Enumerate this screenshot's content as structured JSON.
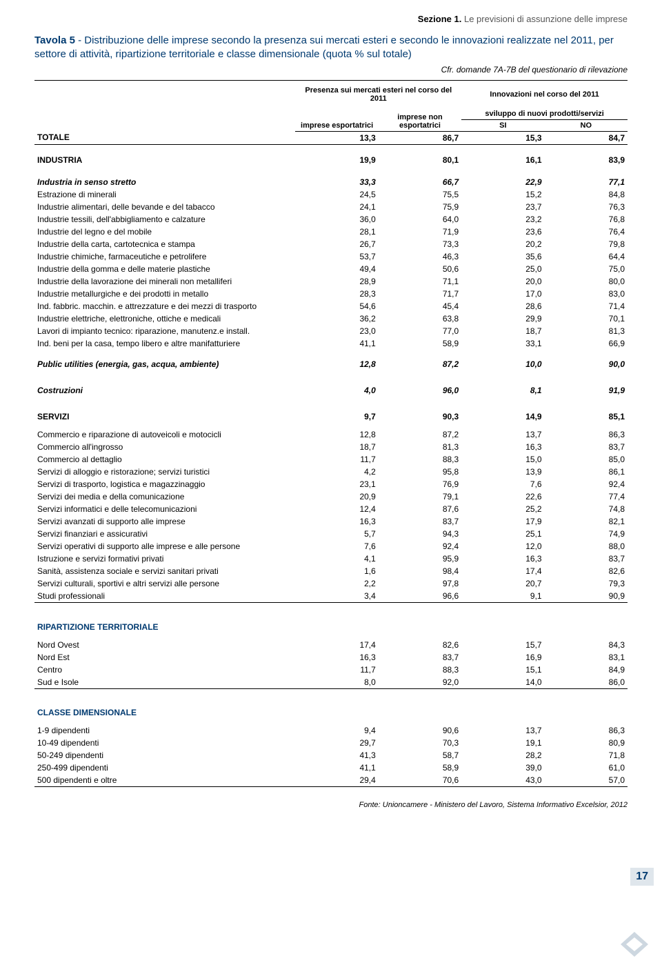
{
  "section_header": {
    "bold": "Sezione 1.",
    "rest": " Le previsioni di assunzione delle imprese"
  },
  "table_title_prefix": "Tavola 5",
  "table_title_rest": " - Distribuzione delle imprese secondo la presenza sui mercati esteri e secondo le innovazioni realizzate nel 2011, per settore di attività, ripartizione territoriale e classe dimensionale (quota % sul totale)",
  "cfr": "Cfr. domande 7A-7B del questionario di rilevazione",
  "headers": {
    "group1": "Presenza sui mercati esteri nel corso del 2011",
    "group2": "Innovazioni nel corso del 2011",
    "col1": "imprese esportatrici",
    "col2": "imprese non esportatrici",
    "sub_group": "sviluppo di nuovi prodotti/servizi",
    "col3": "SI",
    "col4": "NO"
  },
  "rows": [
    {
      "t": "bold",
      "label": "TOTALE",
      "v": [
        "13,3",
        "86,7",
        "15,3",
        "84,7"
      ],
      "bb": true
    },
    {
      "t": "spacer"
    },
    {
      "t": "bold",
      "label": "INDUSTRIA",
      "v": [
        "19,9",
        "80,1",
        "16,1",
        "83,9"
      ]
    },
    {
      "t": "spacer"
    },
    {
      "t": "italic",
      "label": "Industria in senso stretto",
      "v": [
        "33,3",
        "66,7",
        "22,9",
        "77,1"
      ]
    },
    {
      "t": "row",
      "label": "Estrazione di minerali",
      "v": [
        "24,5",
        "75,5",
        "15,2",
        "84,8"
      ]
    },
    {
      "t": "row",
      "label": "Industrie alimentari, delle bevande e del tabacco",
      "v": [
        "24,1",
        "75,9",
        "23,7",
        "76,3"
      ]
    },
    {
      "t": "row",
      "label": "Industrie tessili, dell'abbigliamento e calzature",
      "v": [
        "36,0",
        "64,0",
        "23,2",
        "76,8"
      ]
    },
    {
      "t": "row",
      "label": "Industrie del legno e del mobile",
      "v": [
        "28,1",
        "71,9",
        "23,6",
        "76,4"
      ]
    },
    {
      "t": "row",
      "label": "Industrie della carta, cartotecnica e stampa",
      "v": [
        "26,7",
        "73,3",
        "20,2",
        "79,8"
      ]
    },
    {
      "t": "row",
      "label": "Industrie chimiche, farmaceutiche e petrolifere",
      "v": [
        "53,7",
        "46,3",
        "35,6",
        "64,4"
      ]
    },
    {
      "t": "row",
      "label": "Industrie della gomma e delle materie plastiche",
      "v": [
        "49,4",
        "50,6",
        "25,0",
        "75,0"
      ]
    },
    {
      "t": "row",
      "label": "Industrie della lavorazione dei minerali non metalliferi",
      "v": [
        "28,9",
        "71,1",
        "20,0",
        "80,0"
      ]
    },
    {
      "t": "row",
      "label": "Industrie metallurgiche e dei prodotti in metallo",
      "v": [
        "28,3",
        "71,7",
        "17,0",
        "83,0"
      ]
    },
    {
      "t": "row",
      "label": "Ind. fabbric. macchin. e attrezzature e dei mezzi di trasporto",
      "v": [
        "54,6",
        "45,4",
        "28,6",
        "71,4"
      ]
    },
    {
      "t": "row",
      "label": "Industrie elettriche, elettroniche, ottiche e medicali",
      "v": [
        "36,2",
        "63,8",
        "29,9",
        "70,1"
      ]
    },
    {
      "t": "row",
      "label": "Lavori di impianto tecnico: riparazione, manutenz.e install.",
      "v": [
        "23,0",
        "77,0",
        "18,7",
        "81,3"
      ]
    },
    {
      "t": "row",
      "label": "Ind. beni per la casa, tempo libero e altre manifatturiere",
      "v": [
        "41,1",
        "58,9",
        "33,1",
        "66,9"
      ]
    },
    {
      "t": "subitalic",
      "label": "Public utilities (energia, gas, acqua, ambiente)",
      "v": [
        "12,8",
        "87,2",
        "10,0",
        "90,0"
      ]
    },
    {
      "t": "subitalic",
      "label": "Costruzioni",
      "v": [
        "4,0",
        "96,0",
        "8,1",
        "91,9"
      ]
    },
    {
      "t": "section-head",
      "label": "SERVIZI",
      "v": [
        "9,7",
        "90,3",
        "14,9",
        "85,1"
      ]
    },
    {
      "t": "row",
      "label": "Commercio e riparazione di autoveicoli e motocicli",
      "v": [
        "12,8",
        "87,2",
        "13,7",
        "86,3"
      ]
    },
    {
      "t": "row",
      "label": "Commercio all'ingrosso",
      "v": [
        "18,7",
        "81,3",
        "16,3",
        "83,7"
      ]
    },
    {
      "t": "row",
      "label": "Commercio al dettaglio",
      "v": [
        "11,7",
        "88,3",
        "15,0",
        "85,0"
      ]
    },
    {
      "t": "row",
      "label": "Servizi di alloggio e ristorazione; servizi turistici",
      "v": [
        "4,2",
        "95,8",
        "13,9",
        "86,1"
      ]
    },
    {
      "t": "row",
      "label": "Servizi di trasporto, logistica e magazzinaggio",
      "v": [
        "23,1",
        "76,9",
        "7,6",
        "92,4"
      ]
    },
    {
      "t": "row",
      "label": "Servizi dei media e della comunicazione",
      "v": [
        "20,9",
        "79,1",
        "22,6",
        "77,4"
      ]
    },
    {
      "t": "row",
      "label": "Servizi informatici e delle telecomunicazioni",
      "v": [
        "12,4",
        "87,6",
        "25,2",
        "74,8"
      ]
    },
    {
      "t": "row",
      "label": "Servizi avanzati di supporto alle imprese",
      "v": [
        "16,3",
        "83,7",
        "17,9",
        "82,1"
      ]
    },
    {
      "t": "row",
      "label": "Servizi finanziari e assicurativi",
      "v": [
        "5,7",
        "94,3",
        "25,1",
        "74,9"
      ]
    },
    {
      "t": "row",
      "label": "Servizi operativi di supporto alle imprese e alle persone",
      "v": [
        "7,6",
        "92,4",
        "12,0",
        "88,0"
      ]
    },
    {
      "t": "row",
      "label": "Istruzione e servizi formativi privati",
      "v": [
        "4,1",
        "95,9",
        "16,3",
        "83,7"
      ]
    },
    {
      "t": "row",
      "label": "Sanità, assistenza sociale e servizi sanitari privati",
      "v": [
        "1,6",
        "98,4",
        "17,4",
        "82,6"
      ]
    },
    {
      "t": "row",
      "label": "Servizi culturali, sportivi e altri servizi alle persone",
      "v": [
        "2,2",
        "97,8",
        "20,7",
        "79,3"
      ]
    },
    {
      "t": "row",
      "label": "Studi professionali",
      "v": [
        "3,4",
        "96,6",
        "9,1",
        "90,9"
      ],
      "bb": true
    },
    {
      "t": "spacer"
    },
    {
      "t": "section-head",
      "label": "RIPARTIZIONE TERRITORIALE",
      "v": [
        "",
        "",
        "",
        ""
      ],
      "blue": true
    },
    {
      "t": "row",
      "label": "Nord Ovest",
      "v": [
        "17,4",
        "82,6",
        "15,7",
        "84,3"
      ]
    },
    {
      "t": "row",
      "label": "Nord Est",
      "v": [
        "16,3",
        "83,7",
        "16,9",
        "83,1"
      ]
    },
    {
      "t": "row",
      "label": "Centro",
      "v": [
        "11,7",
        "88,3",
        "15,1",
        "84,9"
      ]
    },
    {
      "t": "row",
      "label": "Sud e Isole",
      "v": [
        "8,0",
        "92,0",
        "14,0",
        "86,0"
      ],
      "bb": true
    },
    {
      "t": "spacer"
    },
    {
      "t": "section-head",
      "label": "CLASSE DIMENSIONALE",
      "v": [
        "",
        "",
        "",
        ""
      ],
      "blue": true
    },
    {
      "t": "row",
      "label": "1-9 dipendenti",
      "v": [
        "9,4",
        "90,6",
        "13,7",
        "86,3"
      ]
    },
    {
      "t": "row",
      "label": "10-49 dipendenti",
      "v": [
        "29,7",
        "70,3",
        "19,1",
        "80,9"
      ]
    },
    {
      "t": "row",
      "label": "50-249 dipendenti",
      "v": [
        "41,3",
        "58,7",
        "28,2",
        "71,8"
      ]
    },
    {
      "t": "row",
      "label": "250-499 dipendenti",
      "v": [
        "41,1",
        "58,9",
        "39,0",
        "61,0"
      ]
    },
    {
      "t": "row",
      "label": "500 dipendenti e oltre",
      "v": [
        "29,4",
        "70,6",
        "43,0",
        "57,0"
      ],
      "bb": true
    }
  ],
  "page_number": "17",
  "footer": "Fonte: Unioncamere - Ministero del Lavoro, Sistema Informativo Excelsior, 2012",
  "colors": {
    "title": "#003a70",
    "pagebox_bg": "#dfe6ec"
  }
}
